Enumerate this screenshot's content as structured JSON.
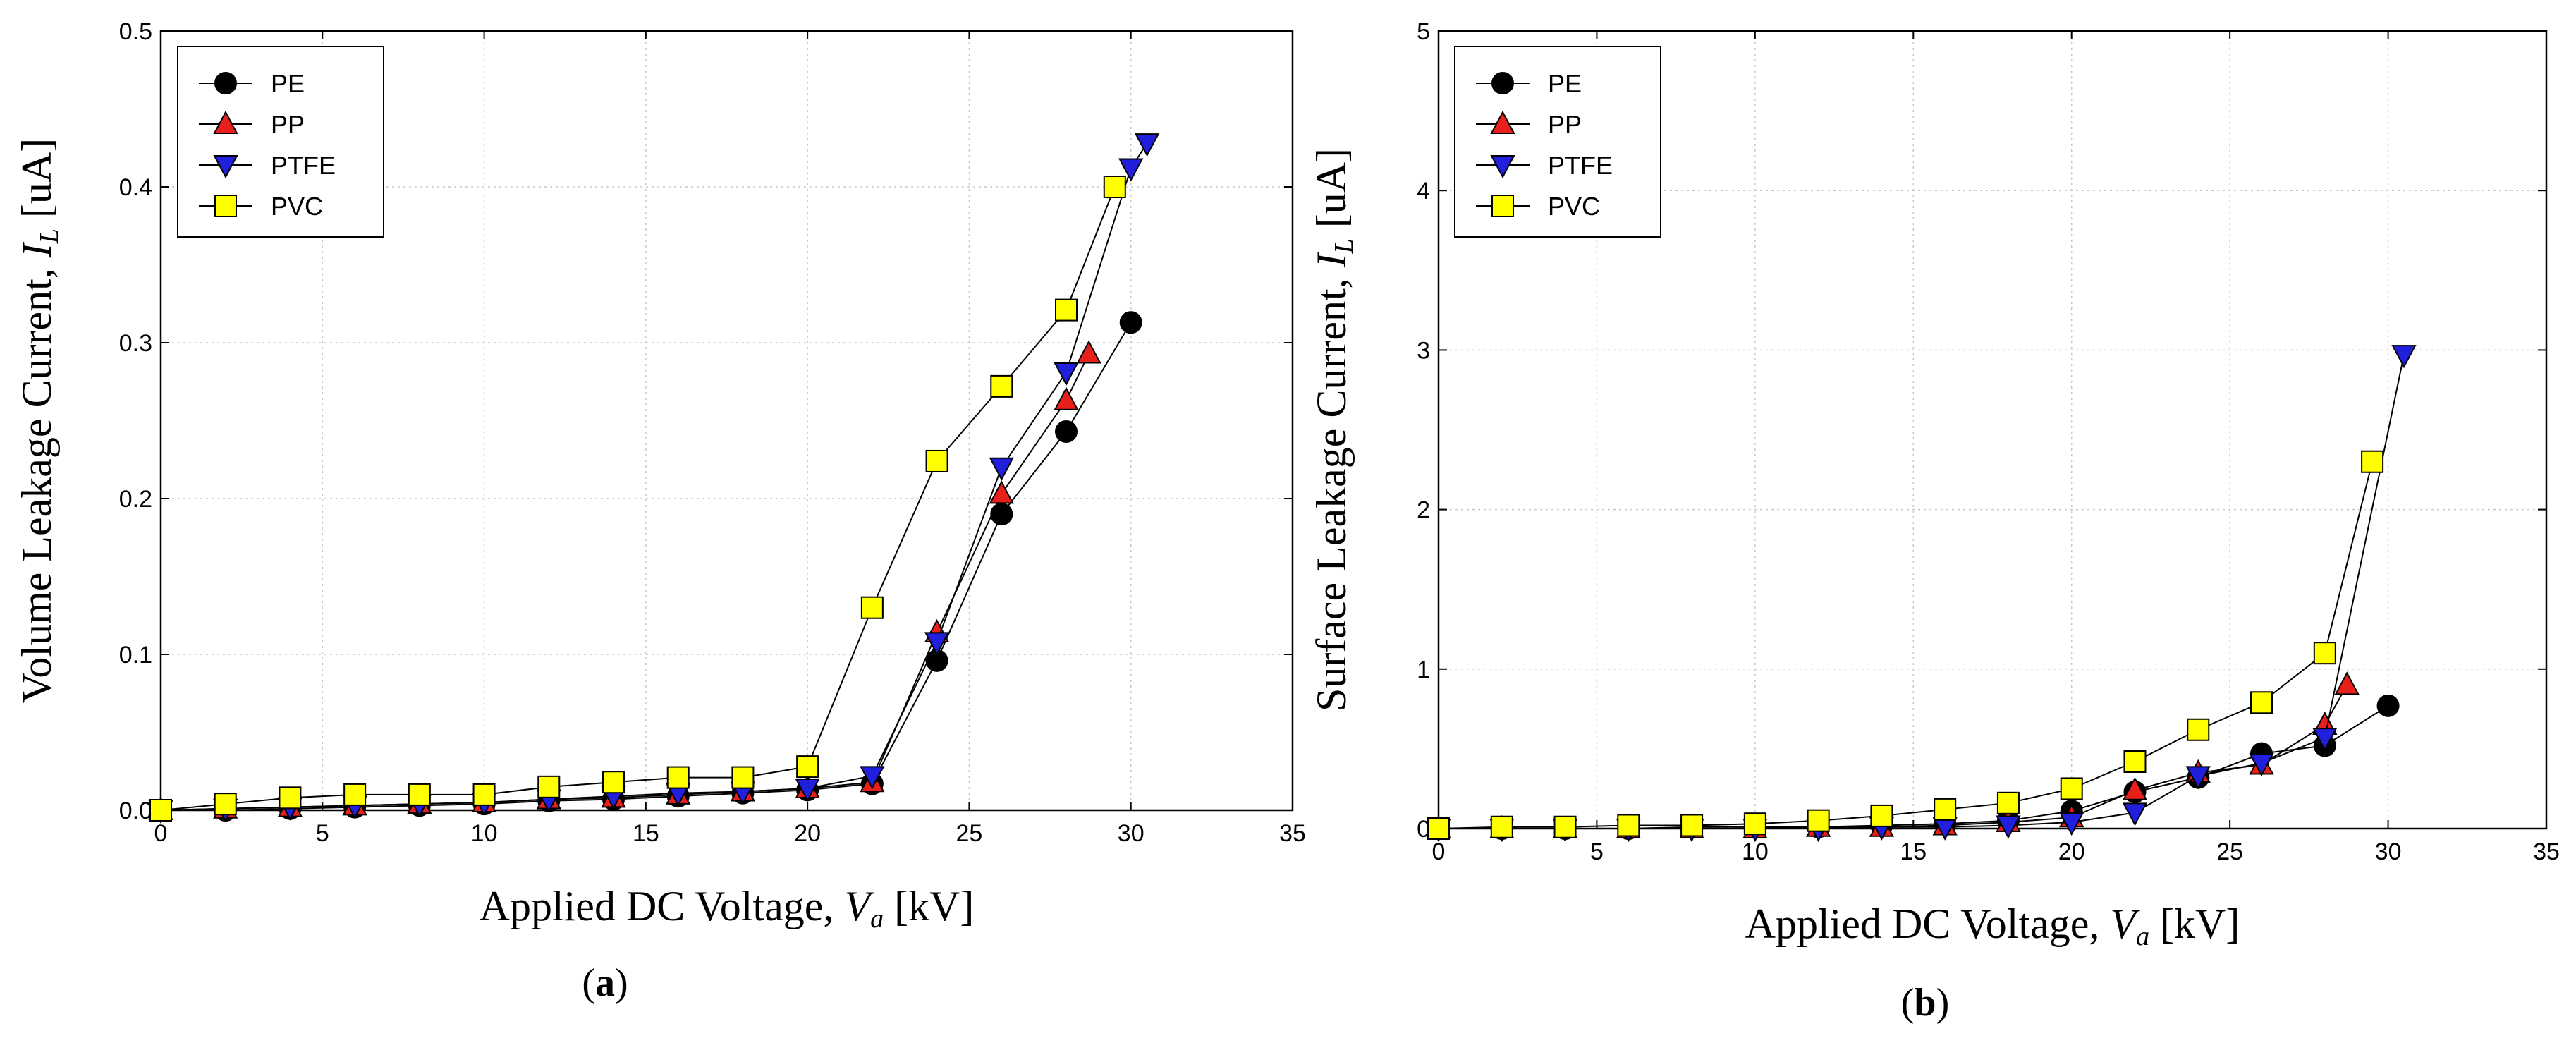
{
  "chart_data": [
    {
      "type": "line",
      "panel_label": "a",
      "xlabel": {
        "prefix": "Applied DC Voltage, ",
        "symbol": "V",
        "subscript": "a",
        "unit": " [kV]"
      },
      "ylabel": {
        "prefix": "Volume Leakage Current, ",
        "symbol": "I",
        "subscript": "L",
        "unit": " [uA]"
      },
      "xlim": [
        0,
        35
      ],
      "ylim": [
        0,
        0.5
      ],
      "xticks": [
        "0",
        "5",
        "10",
        "15",
        "20",
        "25",
        "30",
        "35"
      ],
      "yticks": [
        "0.0",
        "0.1",
        "0.2",
        "0.3",
        "0.4",
        "0.5"
      ],
      "grid": true,
      "legend": "top-left",
      "series": [
        {
          "name": "PE",
          "marker": "circle",
          "color": "#000000",
          "x": [
            0,
            2,
            4,
            6,
            8,
            10,
            12,
            14,
            16,
            18,
            20,
            22,
            24,
            26,
            28,
            30
          ],
          "y": [
            0,
            0,
            0.001,
            0.002,
            0.003,
            0.004,
            0.006,
            0.007,
            0.009,
            0.011,
            0.013,
            0.017,
            0.096,
            0.19,
            0.243,
            0.313
          ]
        },
        {
          "name": "PP",
          "marker": "triangle-up",
          "color": "#e8201c",
          "x": [
            0,
            2,
            4,
            6,
            8,
            10,
            12,
            14,
            16,
            18,
            20,
            22,
            24,
            26,
            28,
            28.7
          ],
          "y": [
            0,
            0.001,
            0.002,
            0.003,
            0.004,
            0.005,
            0.007,
            0.008,
            0.01,
            0.012,
            0.014,
            0.018,
            0.114,
            0.203,
            0.263,
            0.293
          ]
        },
        {
          "name": "PTFE",
          "marker": "triangle-down",
          "color": "#1f1fdc",
          "x": [
            0,
            2,
            4,
            6,
            8,
            10,
            12,
            14,
            16,
            18,
            20,
            22,
            24,
            26,
            28,
            30,
            30.5
          ],
          "y": [
            0,
            0.001,
            0.002,
            0.003,
            0.004,
            0.005,
            0.007,
            0.009,
            0.011,
            0.012,
            0.014,
            0.022,
            0.108,
            0.22,
            0.281,
            0.412,
            0.428
          ]
        },
        {
          "name": "PVC",
          "marker": "square",
          "color": "#ffff00",
          "x": [
            0,
            2,
            4,
            6,
            8,
            10,
            12,
            14,
            16,
            18,
            20,
            22,
            24,
            26,
            28,
            29.5
          ],
          "y": [
            0,
            0.004,
            0.008,
            0.01,
            0.01,
            0.01,
            0.015,
            0.018,
            0.021,
            0.021,
            0.028,
            0.13,
            0.224,
            0.272,
            0.321,
            0.4
          ]
        }
      ]
    },
    {
      "type": "line",
      "panel_label": "b",
      "xlabel": {
        "prefix": "Applied DC Voltage, ",
        "symbol": "V",
        "subscript": "a",
        "unit": " [kV]"
      },
      "ylabel": {
        "prefix": "Surface Leakage Current, ",
        "symbol": "I",
        "subscript": "L",
        "unit": " [uA]"
      },
      "xlim": [
        0,
        35
      ],
      "ylim": [
        0,
        5
      ],
      "xticks": [
        "0",
        "5",
        "10",
        "15",
        "20",
        "25",
        "30",
        "35"
      ],
      "yticks": [
        "0",
        "1",
        "2",
        "3",
        "4",
        "5"
      ],
      "grid": true,
      "legend": "top-left",
      "series": [
        {
          "name": "PE",
          "marker": "circle",
          "color": "#000000",
          "x": [
            0,
            2,
            4,
            6,
            8,
            10,
            12,
            14,
            16,
            18,
            20,
            22,
            24,
            26,
            28,
            30
          ],
          "y": [
            0,
            0,
            0,
            0,
            0.01,
            0.01,
            0.01,
            0.02,
            0.03,
            0.05,
            0.11,
            0.23,
            0.32,
            0.47,
            0.52,
            0.77
          ]
        },
        {
          "name": "PP",
          "marker": "triangle-up",
          "color": "#e8201c",
          "x": [
            0,
            2,
            4,
            6,
            8,
            10,
            12,
            14,
            16,
            18,
            20,
            22,
            24,
            26,
            28,
            28.7
          ],
          "y": [
            0,
            0,
            0,
            0,
            0,
            0,
            0.01,
            0.01,
            0.02,
            0.04,
            0.07,
            0.24,
            0.35,
            0.4,
            0.65,
            0.9
          ]
        },
        {
          "name": "PTFE",
          "marker": "triangle-down",
          "color": "#1f1fdc",
          "x": [
            0,
            2,
            4,
            6,
            8,
            10,
            12,
            14,
            16,
            18,
            20,
            22,
            24,
            26,
            28,
            30.5
          ],
          "y": [
            0,
            0,
            0,
            0,
            0,
            0,
            0,
            0.01,
            0.01,
            0.02,
            0.04,
            0.1,
            0.33,
            0.41,
            0.57,
            2.97
          ]
        },
        {
          "name": "PVC",
          "marker": "square",
          "color": "#ffff00",
          "x": [
            0,
            2,
            4,
            6,
            8,
            10,
            12,
            14,
            16,
            18,
            20,
            22,
            24,
            26,
            28,
            29.5
          ],
          "y": [
            0,
            0.01,
            0.01,
            0.02,
            0.02,
            0.03,
            0.05,
            0.08,
            0.12,
            0.16,
            0.25,
            0.42,
            0.62,
            0.79,
            1.1,
            2.3
          ]
        }
      ]
    }
  ]
}
